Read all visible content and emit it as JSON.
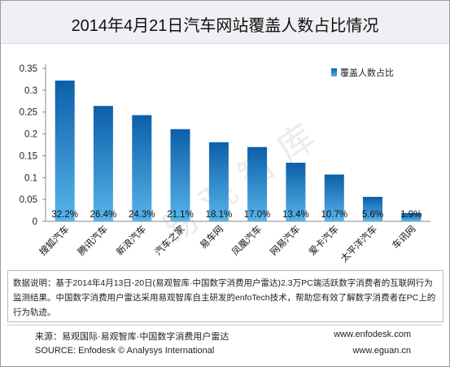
{
  "title": "2014年4月21日汽车网站覆盖人数占比情况",
  "notes": "数据说明：基于2014年4月13日-20日(易观智库·中国数字消费用户雷达)2.3万PC端活跃数字消费者的互联网行为监测结果。中国数字消费用户雷达采用易观智库自主研发的enfoTech技术，帮助您有效了解数字消费者在PC上的行为轨迹。",
  "source_cn": "来源：易观国际·易观智库·中国数字消费用户雷达",
  "source_en": "SOURCE: Enfodesk © Analysys International",
  "url_1": "www.enfodesk.com",
  "url_2": "www.eguan.cn",
  "chart_data": {
    "type": "bar",
    "title": "2014年4月21日汽车网站覆盖人数占比情况",
    "categories": [
      "搜狐汽车",
      "腾讯汽车",
      "新浪汽车",
      "汽车之家",
      "易车网",
      "凤凰汽车",
      "网易汽车",
      "爱卡汽车",
      "太平洋汽车",
      "车讯网"
    ],
    "series": [
      {
        "name": "覆盖人数占比",
        "values": [
          0.322,
          0.264,
          0.243,
          0.211,
          0.181,
          0.17,
          0.134,
          0.107,
          0.056,
          0.019
        ],
        "labels": [
          "32.2%",
          "26.4%",
          "24.3%",
          "21.1%",
          "18.1%",
          "17.0%",
          "13.4%",
          "10.7%",
          "5.6%",
          "1.9%"
        ]
      }
    ],
    "ylim": [
      0,
      0.35
    ],
    "yticks": [
      0,
      0.05,
      0.1,
      0.15,
      0.2,
      0.25,
      0.3,
      0.35
    ],
    "ytick_labels": [
      "0",
      "0.05",
      "0.1",
      "0.15",
      "0.2",
      "0.25",
      "0.3",
      "0.35"
    ],
    "legend_position": "top-right",
    "grid": false,
    "bar_colors": [
      "#0b5fa8",
      "#58b4ea"
    ]
  }
}
